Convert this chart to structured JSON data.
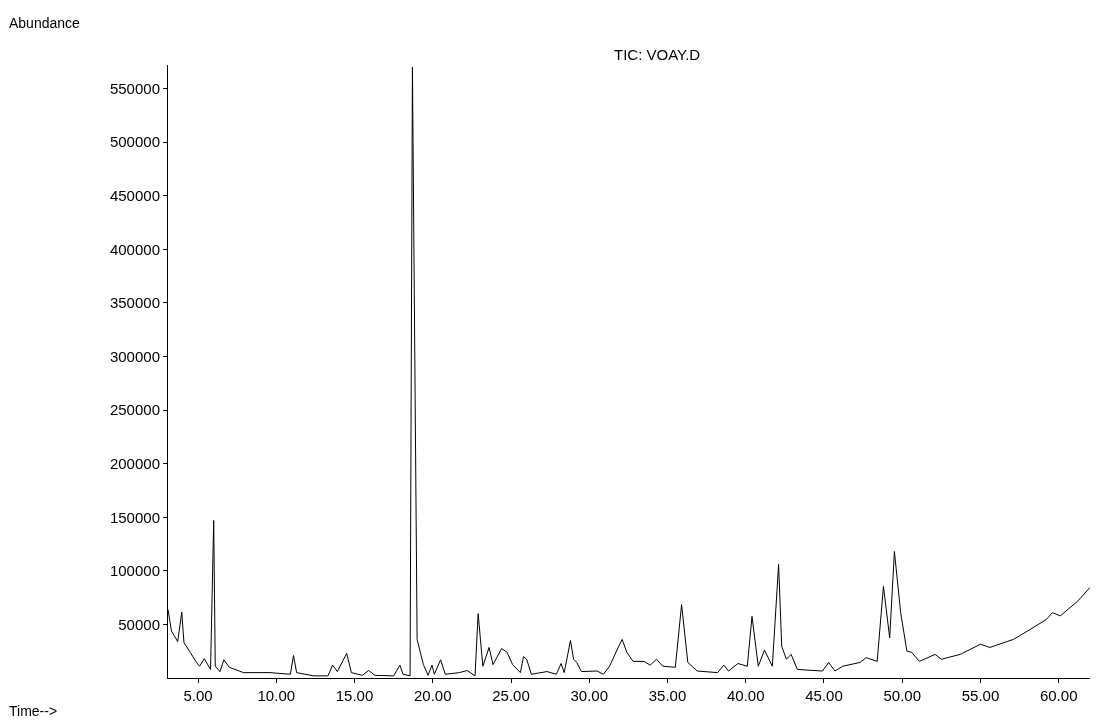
{
  "chart_data": {
    "type": "line",
    "title": "TIC: VOAY.D",
    "xlabel": "Time-->",
    "ylabel": "Abundance",
    "x": [
      3.08,
      3.3,
      3.7,
      3.96,
      4.1,
      4.5,
      4.9,
      5.1,
      5.4,
      5.8,
      6.0,
      6.1,
      6.4,
      6.65,
      7.0,
      7.9,
      9.6,
      10.9,
      11.1,
      11.3,
      12.4,
      13.3,
      13.6,
      13.9,
      14.5,
      14.8,
      15.5,
      15.9,
      16.3,
      17.5,
      17.9,
      18.1,
      18.55,
      18.7,
      19.0,
      19.4,
      19.7,
      19.95,
      20.1,
      20.5,
      20.8,
      21.7,
      22.2,
      22.7,
      22.9,
      23.2,
      23.6,
      23.85,
      24.4,
      24.75,
      25.1,
      25.6,
      25.8,
      26.0,
      26.3,
      27.3,
      27.9,
      28.2,
      28.4,
      28.8,
      29.0,
      29.2,
      29.5,
      30.5,
      30.9,
      31.3,
      31.8,
      32.1,
      32.4,
      32.8,
      33.5,
      33.9,
      34.3,
      34.7,
      35.5,
      35.9,
      36.3,
      36.9,
      38.2,
      38.6,
      38.9,
      39.5,
      40.1,
      40.4,
      40.8,
      41.2,
      41.7,
      42.1,
      42.3,
      42.6,
      42.9,
      43.3,
      44.9,
      45.3,
      45.7,
      46.2,
      47.3,
      47.7,
      48.4,
      48.8,
      49.2,
      49.5,
      49.9,
      50.3,
      50.6,
      51.1,
      52.1,
      52.5,
      53.7,
      55.0,
      55.6,
      57.1,
      58.2,
      59.2,
      59.6,
      60.1,
      61.2,
      62.0
    ],
    "series": [
      {
        "color": "#000000",
        "values": [
          64000,
          43800,
          34000,
          61500,
          33000,
          24000,
          14500,
          11000,
          18000,
          8000,
          147000,
          11000,
          6000,
          17000,
          10000,
          5000,
          5000,
          3500,
          21000,
          5000,
          2000,
          2000,
          12000,
          6000,
          23000,
          5000,
          2500,
          7000,
          2500,
          2000,
          12000,
          3500,
          2000,
          570000,
          36000,
          12500,
          2500,
          12000,
          3500,
          17000,
          3500,
          5000,
          7000,
          2000,
          60000,
          11000,
          28500,
          12500,
          27500,
          24000,
          12500,
          5000,
          20000,
          17500,
          3500,
          6000,
          3500,
          13500,
          5000,
          35000,
          17500,
          14500,
          6000,
          6500,
          3500,
          11000,
          27000,
          36000,
          24000,
          15500,
          15500,
          12000,
          17500,
          11000,
          10000,
          68500,
          14500,
          6500,
          5000,
          12000,
          6500,
          13500,
          11000,
          57500,
          11000,
          26000,
          11000,
          106000,
          29500,
          17500,
          22000,
          8000,
          6500,
          14500,
          6500,
          11000,
          14500,
          19000,
          15500,
          85500,
          37500,
          118000,
          61000,
          25000,
          24000,
          15500,
          22000,
          17500,
          22000,
          31500,
          28500,
          36000,
          45500,
          54500,
          61000,
          58000,
          71500,
          84500
        ]
      }
    ],
    "xlim": [
      3.08,
      62.0
    ],
    "ylim": [
      0,
      572000
    ],
    "xticks": [
      {
        "value": 5,
        "label": "5.00"
      },
      {
        "value": 10,
        "label": "10.00"
      },
      {
        "value": 15,
        "label": "15.00"
      },
      {
        "value": 20,
        "label": "20.00"
      },
      {
        "value": 25,
        "label": "25.00"
      },
      {
        "value": 30,
        "label": "30.00"
      },
      {
        "value": 35,
        "label": "35.00"
      },
      {
        "value": 40,
        "label": "40.00"
      },
      {
        "value": 45,
        "label": "45.00"
      },
      {
        "value": 50,
        "label": "50.00"
      },
      {
        "value": 55,
        "label": "55.00"
      },
      {
        "value": 60,
        "label": "60.00"
      }
    ],
    "yticks": [
      50000,
      100000,
      150000,
      200000,
      250000,
      300000,
      350000,
      400000,
      450000,
      500000,
      550000
    ],
    "marker": "none",
    "line_style": "solid"
  }
}
